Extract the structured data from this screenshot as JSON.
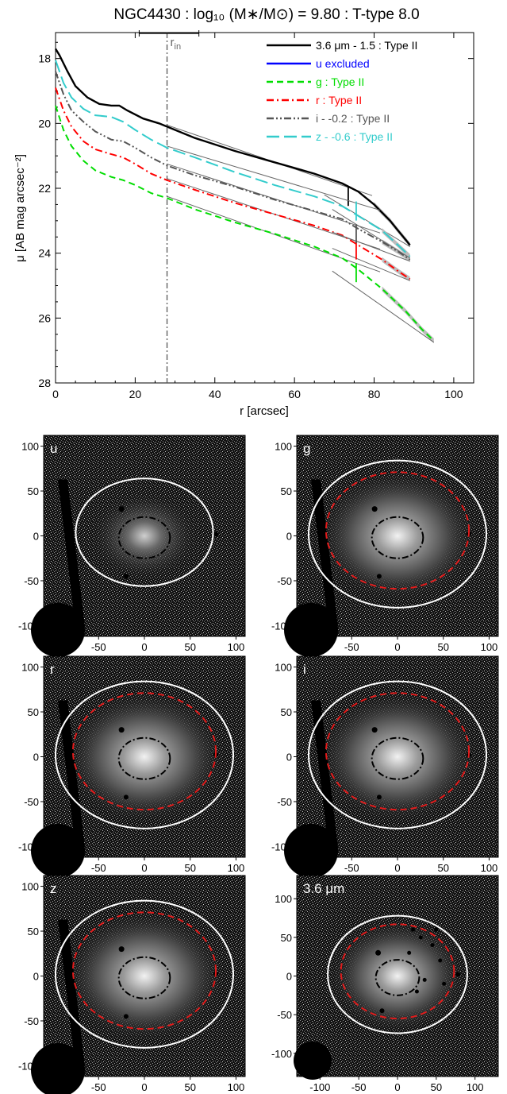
{
  "chart_data": [
    {
      "type": "line",
      "title": "NGC4430 : log₁₀ (M∗/M⊙) = 9.80 : T-type 8.0",
      "xlabel": "r [arcsec]",
      "ylabel": "μ [AB mag arcsec⁻²]",
      "xlim": [
        0,
        105
      ],
      "ylim": [
        28,
        17.2
      ],
      "y_inverted": true,
      "xticks": [
        0,
        20,
        40,
        60,
        80,
        100
      ],
      "yticks": [
        18,
        20,
        22,
        24,
        26,
        28
      ],
      "grid": false,
      "legend_position": "top-right",
      "rin_label": "r",
      "rin_subscript": "in",
      "rin_value": 28,
      "rin_errorbar": [
        21,
        36
      ],
      "series": [
        {
          "name": "3.6 μm - 1.5 : Type II",
          "color": "#000000",
          "style": "solid",
          "x": [
            0,
            1,
            3,
            5,
            8,
            11,
            14,
            16,
            18,
            22,
            26,
            28,
            35,
            45,
            55,
            65,
            72,
            76,
            80,
            84,
            86,
            88,
            89
          ],
          "y": [
            17.7,
            17.9,
            18.4,
            18.85,
            19.2,
            19.4,
            19.45,
            19.45,
            19.6,
            19.85,
            20.0,
            20.1,
            20.45,
            20.85,
            21.2,
            21.55,
            21.85,
            22.1,
            22.5,
            23.0,
            23.3,
            23.6,
            23.75
          ],
          "break_r": 73.5,
          "break_mu": 22.25
        },
        {
          "name": "u excluded",
          "color": "#0000ff",
          "style": "solid",
          "x": [],
          "y": []
        },
        {
          "name": "g : Type II",
          "color": "#00dd00",
          "style": "dashed",
          "x": [
            0,
            2,
            4,
            7,
            10,
            14,
            17,
            20,
            24,
            28,
            35,
            45,
            55,
            65,
            72,
            76,
            82,
            88,
            92,
            95
          ],
          "y": [
            19.45,
            20.2,
            20.7,
            21.15,
            21.45,
            21.65,
            21.75,
            21.9,
            22.15,
            22.3,
            22.65,
            23.05,
            23.4,
            23.8,
            24.15,
            24.5,
            25.1,
            25.8,
            26.35,
            26.7
          ],
          "break_r": 75.5,
          "break_mu": 24.6
        },
        {
          "name": "r : Type II",
          "color": "#ff0000",
          "style": "dash-dot",
          "x": [
            0,
            2,
            4,
            7,
            10,
            14,
            17,
            20,
            24,
            28,
            35,
            45,
            55,
            65,
            72,
            76,
            82,
            86,
            89
          ],
          "y": [
            18.9,
            19.6,
            20.1,
            20.55,
            20.8,
            20.95,
            21.05,
            21.25,
            21.55,
            21.75,
            22.05,
            22.45,
            22.8,
            23.15,
            23.45,
            23.75,
            24.2,
            24.55,
            24.8
          ],
          "break_r": 75.5,
          "break_mu": 23.9
        },
        {
          "name": "i - -0.2 : Type II",
          "color": "#555555",
          "style": "dash-dot-dot",
          "x": [
            0,
            2,
            4,
            7,
            10,
            14,
            17,
            20,
            24,
            28,
            35,
            45,
            55,
            65,
            72,
            76,
            82,
            86,
            89
          ],
          "y": [
            18.4,
            19.1,
            19.6,
            19.95,
            20.25,
            20.5,
            20.55,
            20.75,
            21.05,
            21.3,
            21.6,
            21.95,
            22.35,
            22.7,
            22.95,
            23.25,
            23.65,
            23.95,
            24.2
          ],
          "break_r": 75.5,
          "break_mu": 23.4
        },
        {
          "name": "z - -0.6 : Type II",
          "color": "#33cccc",
          "style": "long-dash",
          "x": [
            0,
            2,
            4,
            7,
            10,
            14,
            17,
            20,
            24,
            28,
            35,
            45,
            55,
            65,
            72,
            76,
            82,
            86,
            89
          ],
          "y": [
            18.05,
            18.75,
            19.2,
            19.55,
            19.75,
            19.8,
            19.95,
            20.2,
            20.5,
            20.75,
            21.05,
            21.5,
            21.9,
            22.25,
            22.55,
            22.85,
            23.3,
            23.75,
            24.1
          ],
          "break_r": 75.5,
          "break_mu": 22.7
        }
      ]
    },
    {
      "type": "image-grid",
      "panels": [
        {
          "label": "u",
          "xlim": [
            -110,
            110
          ],
          "ylim": [
            -112,
            112
          ],
          "xticks": [
            -100,
            -50,
            0,
            50,
            100
          ],
          "yticks": [
            -100,
            -50,
            0,
            50,
            100
          ],
          "outer_ellipse": {
            "a": 75,
            "b": 60,
            "cy": 4
          },
          "break_ellipse": null,
          "inner_ellipse": {
            "a": 28,
            "b": 23,
            "cy": -2
          }
        },
        {
          "label": "g",
          "xlim": [
            -110,
            110
          ],
          "ylim": [
            -112,
            112
          ],
          "xticks": [
            -100,
            -50,
            0,
            50,
            100
          ],
          "yticks": [
            -100,
            -50,
            0,
            50,
            100
          ],
          "outer_ellipse": {
            "a": 97,
            "b": 82,
            "cy": 2
          },
          "break_ellipse": {
            "a": 78,
            "b": 65,
            "cy": 6
          },
          "inner_ellipse": {
            "a": 28,
            "b": 23,
            "cy": -2
          }
        },
        {
          "label": "r",
          "xlim": [
            -110,
            110
          ],
          "ylim": [
            -112,
            112
          ],
          "xticks": [
            -100,
            -50,
            0,
            50,
            100
          ],
          "yticks": [
            -100,
            -50,
            0,
            50,
            100
          ],
          "outer_ellipse": {
            "a": 97,
            "b": 82,
            "cy": 2
          },
          "break_ellipse": {
            "a": 78,
            "b": 65,
            "cy": 6
          },
          "inner_ellipse": {
            "a": 28,
            "b": 23,
            "cy": -2
          }
        },
        {
          "label": "i",
          "xlim": [
            -110,
            110
          ],
          "ylim": [
            -112,
            112
          ],
          "xticks": [
            -100,
            -50,
            0,
            50,
            100
          ],
          "yticks": [
            -100,
            -50,
            0,
            50,
            100
          ],
          "outer_ellipse": {
            "a": 97,
            "b": 82,
            "cy": 2
          },
          "break_ellipse": {
            "a": 78,
            "b": 65,
            "cy": 6
          },
          "inner_ellipse": {
            "a": 28,
            "b": 23,
            "cy": -2
          }
        },
        {
          "label": "z",
          "xlim": [
            -110,
            110
          ],
          "ylim": [
            -112,
            112
          ],
          "xticks": [
            -100,
            -50,
            0,
            50,
            100
          ],
          "yticks": [
            -100,
            -50,
            0,
            50,
            100
          ],
          "outer_ellipse": {
            "a": 97,
            "b": 82,
            "cy": 2
          },
          "break_ellipse": {
            "a": 78,
            "b": 65,
            "cy": 6
          },
          "inner_ellipse": {
            "a": 28,
            "b": 23,
            "cy": -2
          }
        },
        {
          "label": "3.6 μm",
          "xlim": [
            -130,
            130
          ],
          "ylim": [
            -130,
            130
          ],
          "xticks": [
            -100,
            -50,
            0,
            50,
            100
          ],
          "yticks": [
            -100,
            -50,
            0,
            50,
            100
          ],
          "outer_ellipse": {
            "a": 90,
            "b": 76,
            "cy": 2
          },
          "break_ellipse": {
            "a": 73,
            "b": 61,
            "cy": 6
          },
          "inner_ellipse": {
            "a": 28,
            "b": 23,
            "cy": -2
          }
        }
      ]
    }
  ]
}
